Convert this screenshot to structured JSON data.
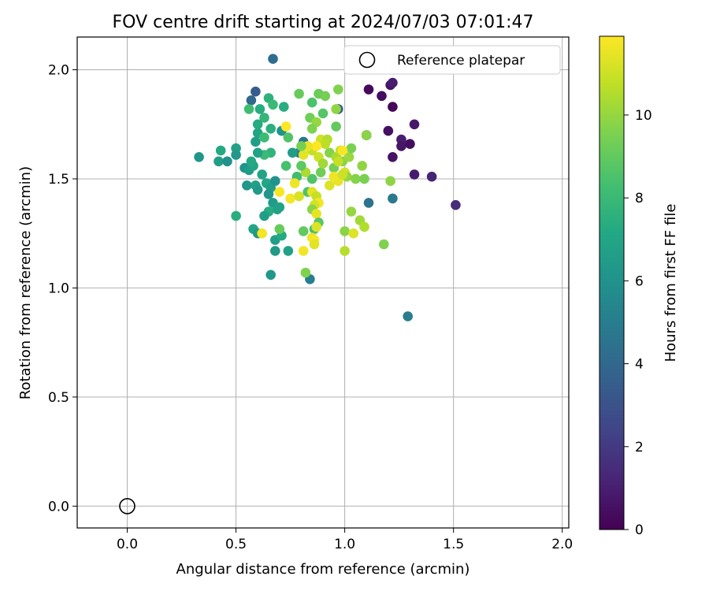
{
  "chart_data": {
    "type": "scatter",
    "title": "FOV centre drift starting at 2024/07/03 07:01:47",
    "xlabel": "Angular distance from reference (arcmin)",
    "ylabel": "Rotation from reference (arcmin)",
    "xlim": [
      -0.23,
      2.03
    ],
    "ylim": [
      -0.1,
      2.15
    ],
    "xticks": [
      0.0,
      0.5,
      1.0,
      1.5,
      2.0
    ],
    "xtick_labels": [
      "0.0",
      "0.5",
      "1.0",
      "1.5",
      "2.0"
    ],
    "yticks": [
      0.0,
      0.5,
      1.0,
      1.5,
      2.0
    ],
    "ytick_labels": [
      "0.0",
      "0.5",
      "1.0",
      "1.5",
      "2.0"
    ],
    "grid": true,
    "legend": {
      "placement": "top-right",
      "label": "Reference platepar"
    },
    "reference_point": {
      "x": 0.0,
      "y": 0.0
    },
    "colorbar": {
      "label": "Hours from first FF file",
      "colormap": "viridis",
      "range": [
        0,
        11.9
      ],
      "ticks": [
        0,
        2,
        4,
        6,
        8,
        10
      ],
      "tick_labels": [
        "0",
        "2",
        "4",
        "6",
        "8",
        "10"
      ]
    },
    "series": [
      {
        "note_fields": [
          "x",
          "y",
          "hours"
        ],
        "points": [
          [
            1.11,
            1.91,
            0.3
          ],
          [
            1.21,
            1.93,
            0.6
          ],
          [
            1.22,
            1.94,
            0.9
          ],
          [
            1.17,
            1.88,
            0.4
          ],
          [
            1.22,
            1.83,
            0.2
          ],
          [
            1.32,
            1.75,
            0.8
          ],
          [
            1.2,
            1.72,
            0.5
          ],
          [
            1.26,
            1.68,
            1.0
          ],
          [
            1.26,
            1.65,
            0.7
          ],
          [
            1.3,
            1.66,
            0.4
          ],
          [
            1.22,
            1.6,
            0.6
          ],
          [
            1.32,
            1.52,
            0.9
          ],
          [
            1.4,
            1.51,
            1.2
          ],
          [
            1.51,
            1.38,
            1.5
          ],
          [
            1.1,
            1.7,
            0.5
          ],
          [
            1.29,
            0.87,
            5.0
          ],
          [
            1.22,
            1.41,
            4.8
          ],
          [
            1.11,
            1.39,
            4.5
          ],
          [
            0.67,
            2.05,
            4.2
          ],
          [
            0.59,
            1.9,
            3.5
          ],
          [
            0.57,
            1.86,
            4.0
          ],
          [
            0.97,
            1.82,
            3.6
          ],
          [
            0.84,
            1.04,
            5.0
          ],
          [
            0.81,
            1.67,
            4.6
          ],
          [
            0.79,
            1.62,
            4.9
          ],
          [
            0.33,
            1.6,
            6.2
          ],
          [
            0.42,
            1.58,
            6.6
          ],
          [
            0.46,
            1.58,
            6.0
          ],
          [
            0.43,
            1.63,
            7.2
          ],
          [
            0.5,
            1.64,
            6.8
          ],
          [
            0.5,
            1.61,
            6.3
          ],
          [
            0.54,
            1.55,
            6.0
          ],
          [
            0.56,
            1.54,
            6.5
          ],
          [
            0.58,
            1.56,
            7.0
          ],
          [
            0.55,
            1.47,
            6.2
          ],
          [
            0.59,
            1.47,
            6.8
          ],
          [
            0.6,
            1.45,
            6.4
          ],
          [
            0.57,
            1.58,
            7.2
          ],
          [
            0.62,
            1.52,
            6.9
          ],
          [
            0.64,
            1.48,
            7.1
          ],
          [
            0.66,
            1.46,
            6.6
          ],
          [
            0.68,
            1.49,
            6.0
          ],
          [
            0.65,
            1.43,
            6.2
          ],
          [
            0.67,
            1.39,
            6.5
          ],
          [
            0.7,
            1.37,
            6.9
          ],
          [
            0.69,
            1.36,
            6.8
          ],
          [
            0.65,
            1.35,
            7.3
          ],
          [
            0.63,
            1.33,
            6.6
          ],
          [
            0.58,
            1.27,
            7.0
          ],
          [
            0.6,
            1.25,
            6.4
          ],
          [
            0.68,
            1.22,
            6.6
          ],
          [
            0.71,
            1.24,
            7.2
          ],
          [
            0.68,
            1.17,
            6.4
          ],
          [
            0.74,
            1.17,
            6.8
          ],
          [
            0.66,
            1.06,
            6.3
          ],
          [
            0.5,
            1.33,
            7.4
          ],
          [
            0.59,
            1.67,
            6.6
          ],
          [
            0.6,
            1.71,
            7.0
          ],
          [
            0.63,
            1.69,
            8.1
          ],
          [
            0.6,
            1.75,
            7.3
          ],
          [
            0.63,
            1.78,
            7.8
          ],
          [
            0.66,
            1.73,
            7.5
          ],
          [
            0.66,
            1.62,
            7.7
          ],
          [
            0.63,
            1.61,
            8.0
          ],
          [
            0.6,
            1.62,
            6.9
          ],
          [
            0.61,
            1.82,
            7.3
          ],
          [
            0.56,
            1.82,
            8.2
          ],
          [
            0.65,
            1.87,
            7.6
          ],
          [
            0.67,
            1.84,
            8.0
          ],
          [
            0.72,
            1.83,
            7.4
          ],
          [
            0.71,
            1.72,
            6.0
          ],
          [
            0.76,
            1.62,
            6.5
          ],
          [
            0.74,
            1.69,
            8.6
          ],
          [
            0.73,
            1.56,
            8.4
          ],
          [
            0.79,
            1.89,
            9.1
          ],
          [
            0.85,
            1.85,
            8.5
          ],
          [
            0.88,
            1.89,
            9.2
          ],
          [
            0.91,
            1.88,
            9.4
          ],
          [
            0.97,
            1.91,
            9.6
          ],
          [
            0.96,
            1.82,
            9.9
          ],
          [
            0.9,
            1.8,
            8.7
          ],
          [
            0.84,
            1.78,
            9.3
          ],
          [
            0.87,
            1.76,
            10.0
          ],
          [
            0.85,
            1.73,
            9.6
          ],
          [
            0.96,
            1.74,
            9.0
          ],
          [
            0.89,
            1.68,
            11.0
          ],
          [
            0.92,
            1.68,
            10.5
          ],
          [
            0.85,
            1.63,
            10.9
          ],
          [
            0.81,
            1.61,
            11.4
          ],
          [
            0.88,
            1.6,
            11.0
          ],
          [
            0.93,
            1.62,
            9.7
          ],
          [
            0.96,
            1.6,
            10.3
          ],
          [
            0.99,
            1.58,
            9.8
          ],
          [
            1.02,
            1.6,
            10.1
          ],
          [
            1.03,
            1.64,
            9.5
          ],
          [
            0.98,
            1.63,
            10.8
          ],
          [
            0.95,
            1.55,
            9.4
          ],
          [
            1.0,
            1.53,
            11.2
          ],
          [
            1.01,
            1.51,
            10.0
          ],
          [
            1.05,
            1.5,
            9.7
          ],
          [
            1.08,
            1.56,
            9.9
          ],
          [
            1.09,
            1.5,
            9.5
          ],
          [
            0.97,
            1.49,
            11.5
          ],
          [
            0.93,
            1.47,
            11.3
          ],
          [
            0.89,
            1.53,
            9.3
          ],
          [
            0.85,
            1.5,
            8.6
          ],
          [
            0.82,
            1.53,
            10.4
          ],
          [
            0.8,
            1.56,
            8.9
          ],
          [
            0.78,
            1.51,
            8.2
          ],
          [
            0.77,
            1.48,
            11.6
          ],
          [
            0.75,
            1.41,
            11.7
          ],
          [
            0.79,
            1.42,
            11.2
          ],
          [
            0.83,
            1.44,
            8.5
          ],
          [
            0.85,
            1.44,
            11.4
          ],
          [
            0.87,
            1.42,
            10.9
          ],
          [
            0.88,
            1.39,
            11.7
          ],
          [
            0.86,
            1.38,
            11.1
          ],
          [
            0.85,
            1.36,
            9.8
          ],
          [
            0.87,
            1.34,
            11.5
          ],
          [
            0.88,
            1.3,
            8.8
          ],
          [
            0.86,
            1.27,
            8.4
          ],
          [
            0.87,
            1.28,
            11.3
          ],
          [
            0.81,
            1.26,
            9.0
          ],
          [
            0.85,
            1.23,
            11.6
          ],
          [
            0.86,
            1.22,
            11.8
          ],
          [
            0.86,
            1.2,
            11.4
          ],
          [
            0.81,
            1.17,
            11.7
          ],
          [
            0.82,
            1.07,
            9.6
          ],
          [
            0.7,
            1.27,
            9.1
          ],
          [
            0.62,
            1.25,
            11.7
          ],
          [
            0.7,
            1.44,
            11.8
          ],
          [
            0.73,
            1.74,
            11.9
          ],
          [
            1.0,
            1.26,
            9.8
          ],
          [
            1.04,
            1.25,
            11.3
          ],
          [
            1.07,
            1.31,
            10.2
          ],
          [
            1.09,
            1.28,
            10.5
          ],
          [
            1.03,
            1.35,
            10.0
          ],
          [
            1.0,
            1.17,
            10.6
          ],
          [
            1.18,
            1.2,
            9.6
          ],
          [
            1.21,
            1.49,
            9.9
          ],
          [
            1.1,
            1.7,
            9.8
          ],
          [
            0.99,
            1.63,
            11.8
          ],
          [
            0.97,
            1.58,
            10.9
          ],
          [
            0.9,
            1.57,
            10.2
          ],
          [
            0.95,
            1.51,
            11.6
          ],
          [
            0.99,
            1.52,
            11.0
          ],
          [
            0.91,
            1.66,
            10.7
          ],
          [
            0.87,
            1.65,
            11.9
          ],
          [
            0.83,
            1.65,
            11.5
          ],
          [
            0.8,
            1.65,
            9.4
          ]
        ]
      }
    ]
  }
}
